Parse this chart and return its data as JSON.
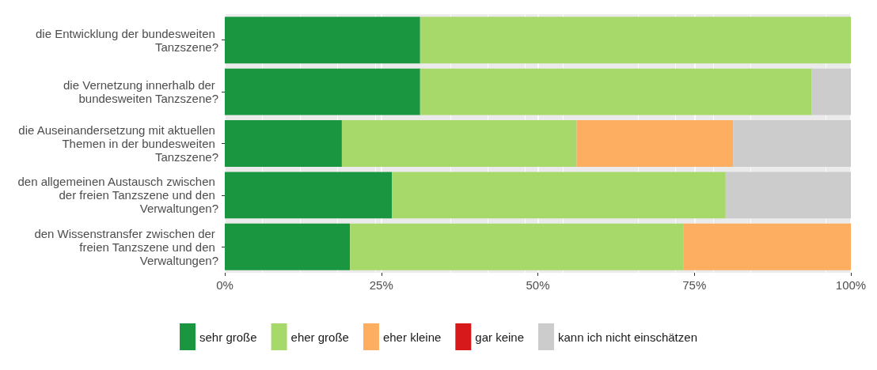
{
  "chart_data": {
    "type": "bar",
    "orientation": "horizontal",
    "stacked": true,
    "categories": [
      "die Entwicklung der bundesweiten Tanzszene?",
      "die Vernetzung innerhalb der bundesweiten Tanzszene?",
      "die Auseinandersetzung mit aktuellen Themen in der bundesweiten Tanzszene?",
      "den allgemeinen Austausch zwischen der freien Tanzszene und den Verwaltungen?",
      "den Wissenstransfer zwischen der freien Tanzszene und den Verwaltungen?"
    ],
    "series": [
      {
        "name": "sehr große",
        "color": "#1a9641",
        "values": [
          31.2,
          31.2,
          18.7,
          26.7,
          20
        ]
      },
      {
        "name": "eher große",
        "color": "#a6d96a",
        "values": [
          68.8,
          62.5,
          37.5,
          53.3,
          53.3
        ]
      },
      {
        "name": "eher kleine",
        "color": "#fdae61",
        "values": [
          0,
          0,
          25,
          0,
          26.7
        ]
      },
      {
        "name": "gar keine",
        "color": "#d7191c",
        "values": [
          0,
          0,
          0,
          0,
          0
        ]
      },
      {
        "name": "kann ich nicht einschätzen",
        "color": "#cccccc",
        "values": [
          0,
          6.3,
          18.8,
          20,
          0
        ]
      }
    ],
    "xlim": [
      0,
      100
    ],
    "xticks": [
      {
        "value": 0,
        "label": "0%"
      },
      {
        "value": 25,
        "label": "25%"
      },
      {
        "value": 50,
        "label": "50%"
      },
      {
        "value": 75,
        "label": "75%"
      },
      {
        "value": 100,
        "label": "100%"
      }
    ],
    "grid": "x",
    "legend": "bottom"
  }
}
